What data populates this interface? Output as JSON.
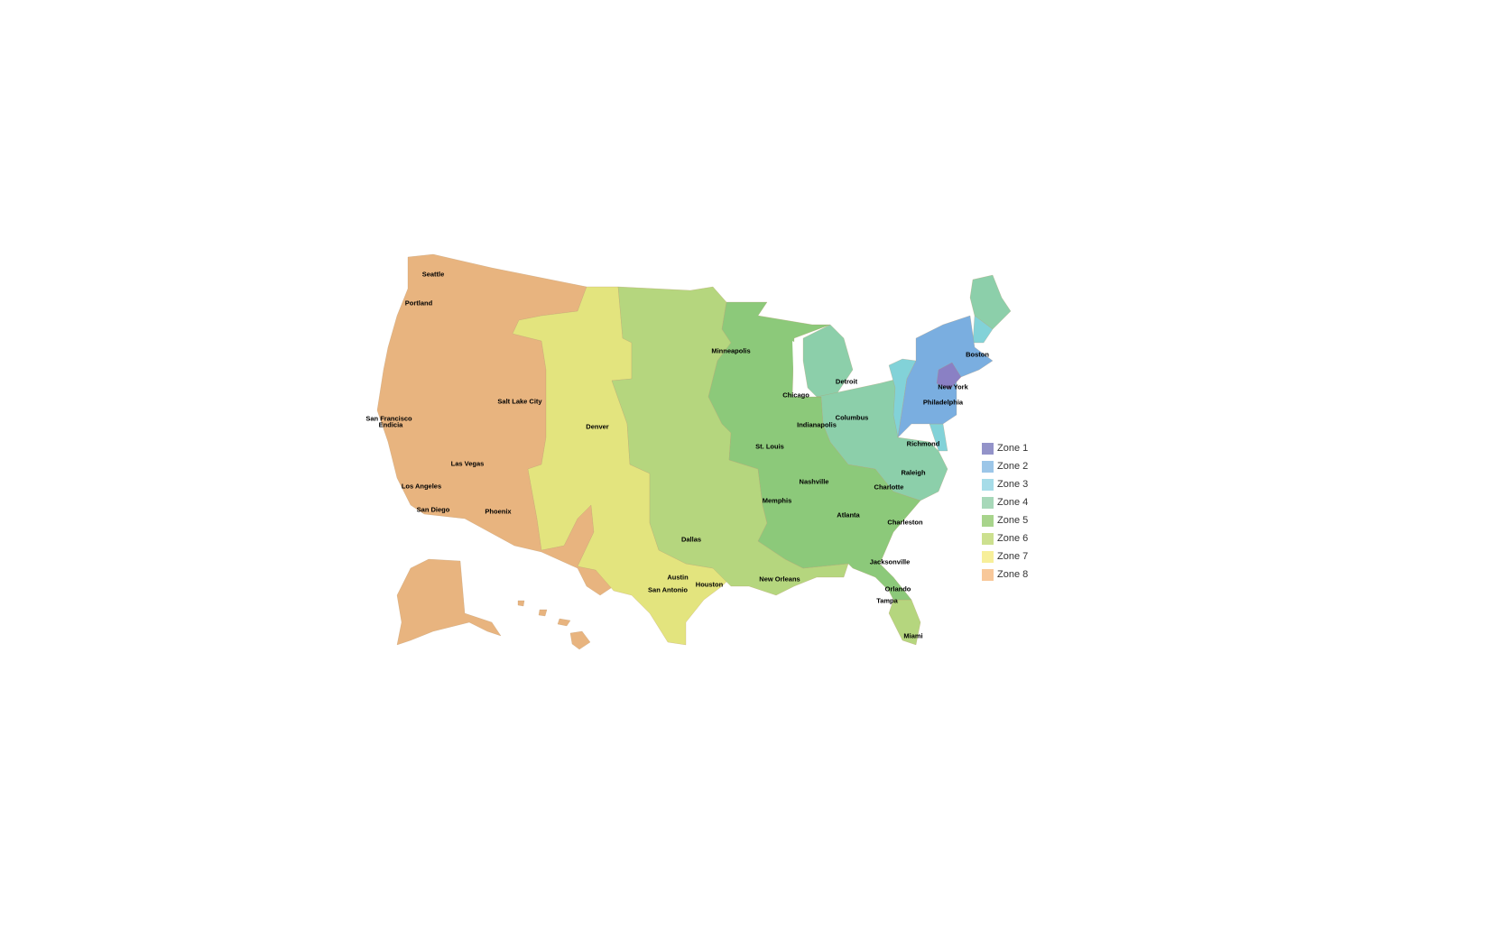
{
  "zones": [
    {
      "label": "Zone 1",
      "legend_color": "#9393c9",
      "map_color": "#8a80c4"
    },
    {
      "label": "Zone 2",
      "legend_color": "#9cc6e8",
      "map_color": "#7aaee0"
    },
    {
      "label": "Zone 3",
      "legend_color": "#a6dce8",
      "map_color": "#82d2d8"
    },
    {
      "label": "Zone 4",
      "legend_color": "#a7d8b9",
      "map_color": "#8ccfaa"
    },
    {
      "label": "Zone 5",
      "legend_color": "#a8d48c",
      "map_color": "#8cc97a"
    },
    {
      "label": "Zone 6",
      "legend_color": "#cce08f",
      "map_color": "#b5d67e"
    },
    {
      "label": "Zone 7",
      "legend_color": "#f7ef9a",
      "map_color": "#e3e47e"
    },
    {
      "label": "Zone 8",
      "legend_color": "#f8c89a",
      "map_color": "#e8b47f"
    }
  ],
  "cities": [
    "Seattle",
    "Portland",
    "Salt Lake City",
    "San Francisco",
    "Endicia",
    "Las Vegas",
    "Los Angeles",
    "San Diego",
    "Phoenix",
    "Denver",
    "Dallas",
    "Austin",
    "San Antonio",
    "Houston",
    "Minneapolis",
    "Chicago",
    "St. Louis",
    "Indianapolis",
    "Memphis",
    "Nashville",
    "New Orleans",
    "Atlanta",
    "Detroit",
    "Columbus",
    "Richmond",
    "Raleigh",
    "Charlotte",
    "Charleston",
    "Jacksonville",
    "Orlando",
    "Tampa",
    "Miami",
    "Boston",
    "New York",
    "Philadelphia"
  ]
}
